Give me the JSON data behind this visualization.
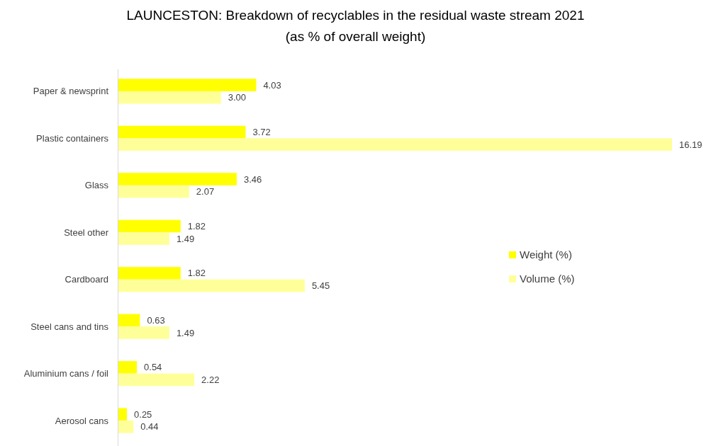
{
  "chart_data": {
    "type": "bar",
    "orientation": "horizontal",
    "relative": false,
    "title": "LAUNCESTON: Breakdown of recyclables in the residual waste stream 2021",
    "subtitle": "(as % of overall weight)",
    "categories": [
      "Paper & newsprint",
      "Plastic containers",
      "Glass",
      "Steel other",
      "Cardboard",
      "Steel cans and tins",
      "Aluminium cans / foil",
      "Aerosol cans"
    ],
    "series": [
      {
        "name": "Weight (%)",
        "color": "#ffff00",
        "values": [
          4.03,
          3.72,
          3.46,
          1.82,
          1.82,
          0.63,
          0.54,
          0.25
        ],
        "value_labels": [
          "4.03",
          "3.72",
          "3.46",
          "1.82",
          "1.82",
          "0.63",
          "0.54",
          "0.25"
        ]
      },
      {
        "name": "Volume (%)",
        "color": "#ffff99",
        "values": [
          3.0,
          16.19,
          2.07,
          1.49,
          5.45,
          1.49,
          2.22,
          0.44
        ],
        "value_labels": [
          "3.00",
          "16.19",
          "2.07",
          "1.49",
          "5.45",
          "1.49",
          "2.22",
          "0.44"
        ]
      }
    ],
    "legend": "right",
    "grid": false
  }
}
